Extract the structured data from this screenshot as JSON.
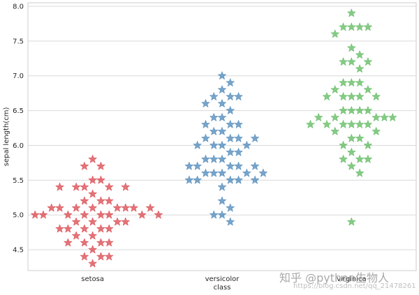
{
  "chart_data": {
    "type": "scatter",
    "style": "swarm",
    "marker": "star",
    "xlabel": "class",
    "ylabel": "sepal length(cm)",
    "ylim": [
      4.2,
      8.05
    ],
    "yticks": [
      "4.5",
      "5.0",
      "5.5",
      "6.0",
      "6.5",
      "7.0",
      "7.5",
      "8.0"
    ],
    "grid": true,
    "categories": [
      "setosa",
      "versicolor",
      "virginica"
    ],
    "series": [
      {
        "color": "#d9444b",
        "values": [
          5.1,
          4.9,
          4.7,
          4.6,
          5.0,
          5.4,
          4.6,
          5.0,
          4.4,
          4.9,
          5.4,
          4.8,
          4.8,
          4.3,
          5.8,
          5.7,
          5.4,
          5.1,
          5.7,
          5.1,
          5.4,
          5.1,
          4.6,
          5.1,
          4.8,
          5.0,
          5.0,
          5.2,
          5.2,
          4.7,
          4.8,
          5.4,
          5.2,
          5.5,
          4.9,
          5.0,
          5.5,
          4.9,
          4.4,
          5.1,
          5.0,
          4.5,
          4.4,
          5.0,
          5.1,
          4.8,
          5.1,
          4.6,
          5.3,
          5.0
        ]
      },
      {
        "color": "#4a86b8",
        "values": [
          7.0,
          6.4,
          6.9,
          5.5,
          6.5,
          5.7,
          6.3,
          4.9,
          6.6,
          5.2,
          5.0,
          5.9,
          6.0,
          6.1,
          5.6,
          6.7,
          5.6,
          5.8,
          6.2,
          5.6,
          5.9,
          6.1,
          6.3,
          6.1,
          6.4,
          6.6,
          6.8,
          6.7,
          6.0,
          5.7,
          5.5,
          5.5,
          5.8,
          6.0,
          5.4,
          6.0,
          6.7,
          6.3,
          5.6,
          5.5,
          5.5,
          6.1,
          5.8,
          5.0,
          5.6,
          5.7,
          5.7,
          6.2,
          5.1,
          5.7
        ]
      },
      {
        "color": "#5cb85c",
        "values": [
          6.3,
          5.8,
          7.1,
          6.3,
          6.5,
          7.6,
          4.9,
          7.3,
          6.7,
          7.2,
          6.5,
          6.4,
          6.8,
          5.7,
          5.8,
          6.4,
          6.5,
          7.7,
          7.7,
          6.0,
          6.9,
          5.6,
          7.7,
          6.3,
          6.7,
          7.2,
          6.2,
          6.1,
          6.4,
          7.2,
          7.4,
          7.9,
          6.4,
          6.3,
          6.1,
          7.7,
          6.3,
          6.4,
          6.0,
          6.9,
          6.7,
          6.9,
          5.8,
          6.8,
          6.7,
          6.7,
          6.3,
          6.5,
          6.2,
          5.9
        ]
      }
    ]
  },
  "watermark": {
    "text": "知乎 @python生物人",
    "url": "https://blog.csdn.net/qq_21478261"
  }
}
